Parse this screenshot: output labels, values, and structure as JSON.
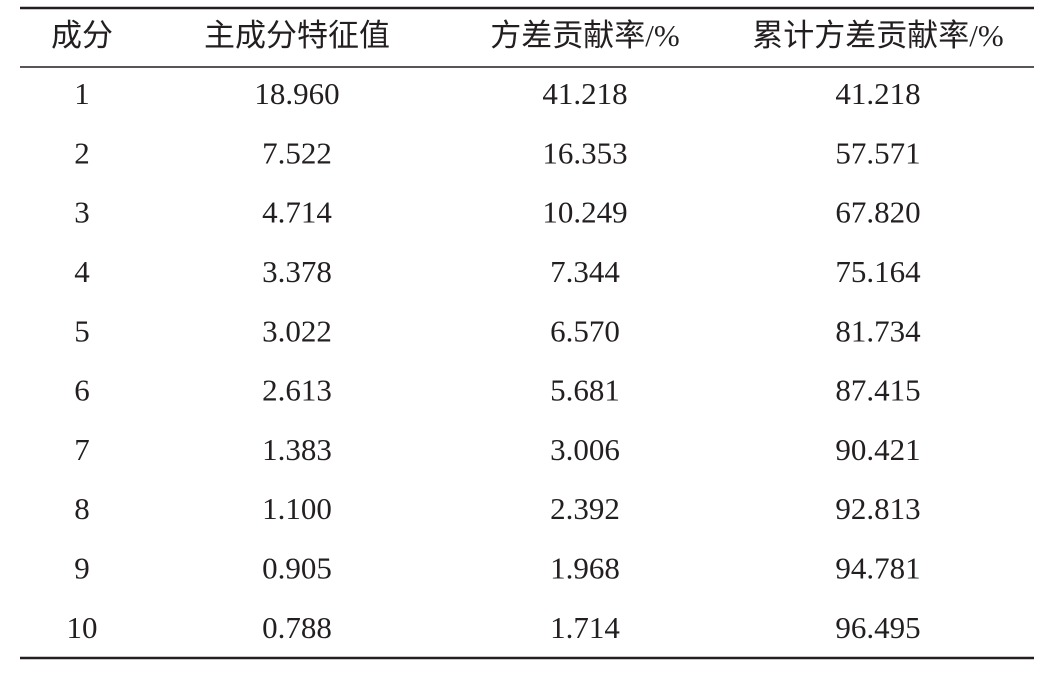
{
  "table": {
    "header": [
      "成分",
      "主成分特征值",
      "方差贡献率/%",
      "累计方差贡献率/%"
    ],
    "rows": [
      [
        "1",
        "18.960",
        "41.218",
        "41.218"
      ],
      [
        "2",
        "7.522",
        "16.353",
        "57.571"
      ],
      [
        "3",
        "4.714",
        "10.249",
        "67.820"
      ],
      [
        "4",
        "3.378",
        "7.344",
        "75.164"
      ],
      [
        "5",
        "3.022",
        "6.570",
        "81.734"
      ],
      [
        "6",
        "2.613",
        "5.681",
        "87.415"
      ],
      [
        "7",
        "1.383",
        "3.006",
        "90.421"
      ],
      [
        "8",
        "1.100",
        "2.392",
        "92.813"
      ],
      [
        "9",
        "0.905",
        "1.968",
        "94.781"
      ],
      [
        "10",
        "0.788",
        "1.714",
        "96.495"
      ]
    ]
  }
}
